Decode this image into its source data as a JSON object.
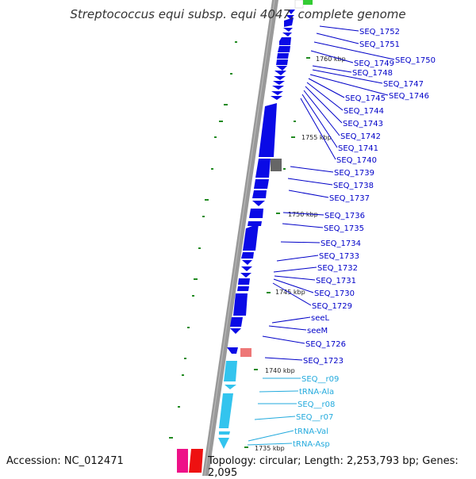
{
  "title": "Streptococcus equi subsp. equi 4047, complete genome",
  "accession_text": "Accession: NC_012471",
  "topology_text": "Topology: circular; Length: 2,253,793 bp; Genes: 2,095",
  "colors": {
    "cds": "#0a0ae6",
    "rna": "#33c4ee",
    "cds_label": "#0000c8",
    "rna_label": "#22aadd",
    "backbone": "#999999",
    "tick": "#228b22",
    "pseudo": "#666666",
    "highlight_pink": "#ee7777",
    "magenta": "#ee1188",
    "red": "#ee1111",
    "green": "#33cc33"
  },
  "kbp_markers": [
    "1760 kbp",
    "1755 kbp",
    "1750 kbp",
    "1745 kbp",
    "1740 kbp",
    "1735 kbp"
  ],
  "gene_labels": [
    {
      "text": "SEQ_1752",
      "type": "cds"
    },
    {
      "text": "SEQ_1751",
      "type": "cds"
    },
    {
      "text": "SEQ_1750",
      "type": "cds"
    },
    {
      "text": "SEQ_1749",
      "type": "cds"
    },
    {
      "text": "SEQ_1748",
      "type": "cds"
    },
    {
      "text": "SEQ_1747",
      "type": "cds"
    },
    {
      "text": "SEQ_1746",
      "type": "cds"
    },
    {
      "text": "SEQ_1745",
      "type": "cds"
    },
    {
      "text": "SEQ_1744",
      "type": "cds"
    },
    {
      "text": "SEQ_1743",
      "type": "cds"
    },
    {
      "text": "SEQ_1742",
      "type": "cds"
    },
    {
      "text": "SEQ_1741",
      "type": "cds"
    },
    {
      "text": "SEQ_1740",
      "type": "cds"
    },
    {
      "text": "SEQ_1739",
      "type": "cds"
    },
    {
      "text": "SEQ_1738",
      "type": "cds"
    },
    {
      "text": "SEQ_1737",
      "type": "cds"
    },
    {
      "text": "SEQ_1736",
      "type": "cds"
    },
    {
      "text": "SEQ_1735",
      "type": "cds"
    },
    {
      "text": "SEQ_1734",
      "type": "cds"
    },
    {
      "text": "SEQ_1733",
      "type": "cds"
    },
    {
      "text": "SEQ_1732",
      "type": "cds"
    },
    {
      "text": "SEQ_1731",
      "type": "cds"
    },
    {
      "text": "SEQ_1730",
      "type": "cds"
    },
    {
      "text": "SEQ_1729",
      "type": "cds"
    },
    {
      "text": "seeL",
      "type": "cds"
    },
    {
      "text": "seeM",
      "type": "cds"
    },
    {
      "text": "SEQ_1726",
      "type": "cds"
    },
    {
      "text": "SEQ_1723",
      "type": "cds"
    },
    {
      "text": "SEQ__r09",
      "type": "rna"
    },
    {
      "text": "tRNA-Ala",
      "type": "rna"
    },
    {
      "text": "SEQ__r08",
      "type": "rna"
    },
    {
      "text": "SEQ__r07",
      "type": "rna"
    },
    {
      "text": "tRNA-Val",
      "type": "rna"
    },
    {
      "text": "tRNA-Asp",
      "type": "rna"
    }
  ]
}
